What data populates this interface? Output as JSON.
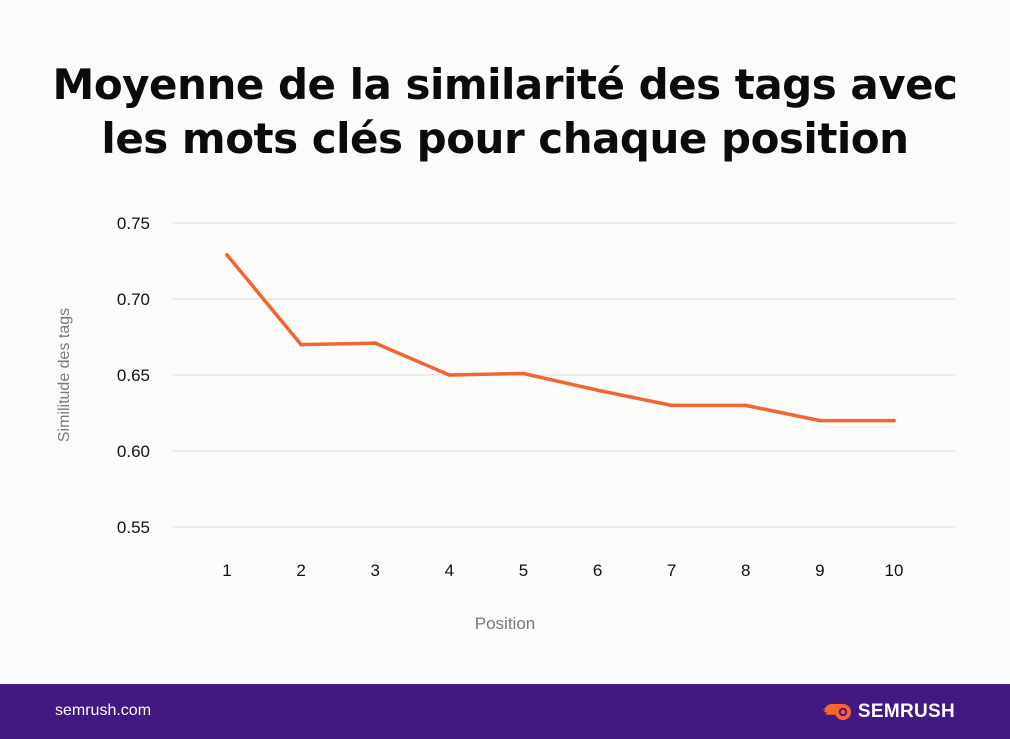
{
  "chart_data": {
    "type": "line",
    "title_lines": [
      "Moyenne de la similarité des tags avec",
      "les mots clés pour chaque position"
    ],
    "xlabel": "Position",
    "ylabel": "Similitude des tags",
    "categories": [
      "1",
      "2",
      "3",
      "4",
      "5",
      "6",
      "7",
      "8",
      "9",
      "10"
    ],
    "series": [
      {
        "values": [
          0.729,
          0.67,
          0.671,
          0.65,
          0.651,
          0.64,
          0.63,
          0.63,
          0.62,
          0.62
        ]
      }
    ],
    "yticks": [
      "0.75",
      "0.70",
      "0.65",
      "0.60",
      "0.55"
    ],
    "ylim": [
      0.55,
      0.75
    ],
    "grid": true,
    "line_color": "#f26431"
  },
  "footer": {
    "site": "semrush.com",
    "brand": "SEMRUSH",
    "brand_icon": "semrush-fire-logo-icon"
  },
  "colors": {
    "background": "#fbfcfa",
    "footer_bg": "#421983",
    "grid": "#dcdedc",
    "accent": "#f26431"
  }
}
